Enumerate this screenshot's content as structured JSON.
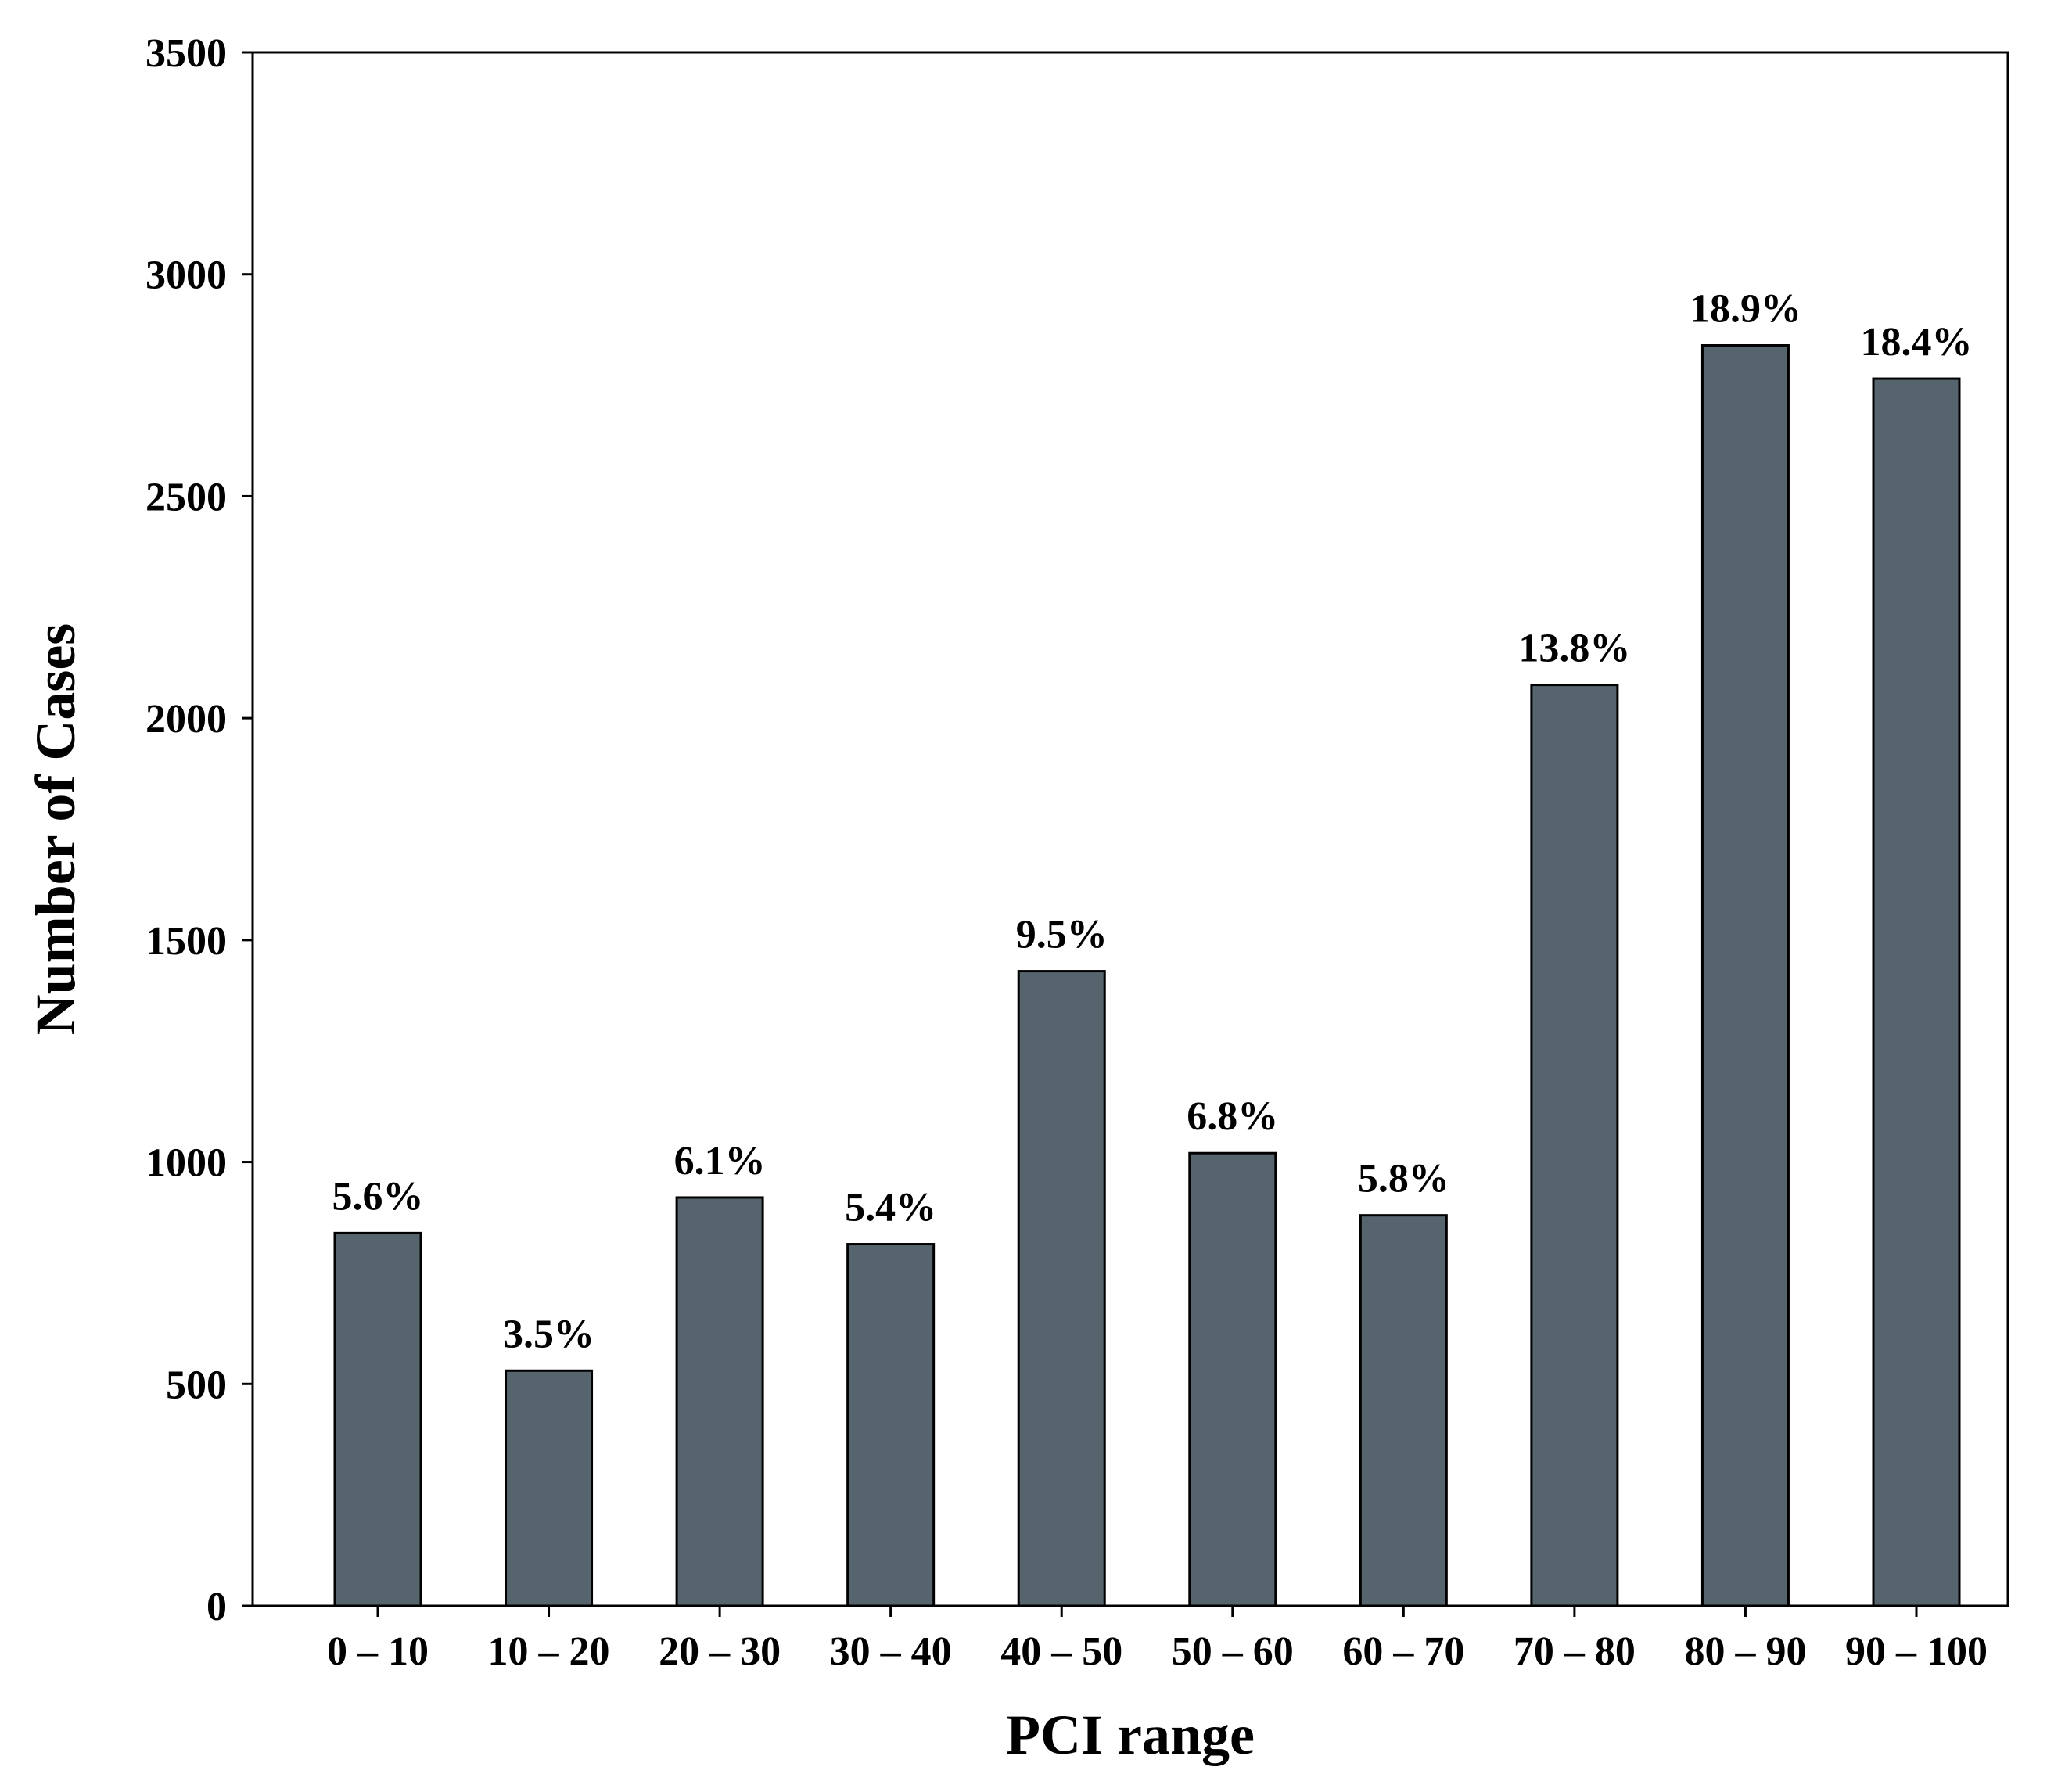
{
  "chart_data": {
    "type": "bar",
    "title": "",
    "xlabel": "PCI range",
    "ylabel": "Number of Cases",
    "categories": [
      "0 – 10",
      "10 – 20",
      "20 – 30",
      "30 – 40",
      "40 – 50",
      "50 – 60",
      "60 – 70",
      "70 – 80",
      "80 – 90",
      "90 – 100"
    ],
    "values": [
      840,
      530,
      920,
      815,
      1430,
      1020,
      880,
      2075,
      2840,
      2765
    ],
    "data_labels": [
      "5.6%",
      "3.5%",
      "6.1%",
      "5.4%",
      "9.5%",
      "6.8%",
      "5.8%",
      "13.8%",
      "18.9%",
      "18.4%"
    ],
    "ylim": [
      0,
      3500
    ],
    "yticks": [
      0,
      500,
      1000,
      1500,
      2000,
      2500,
      3000,
      3500
    ],
    "grid": false,
    "legend": "none",
    "colors": {
      "bar_fill": "#56656d",
      "bar_stroke": "#000000",
      "axis": "#000000"
    }
  }
}
